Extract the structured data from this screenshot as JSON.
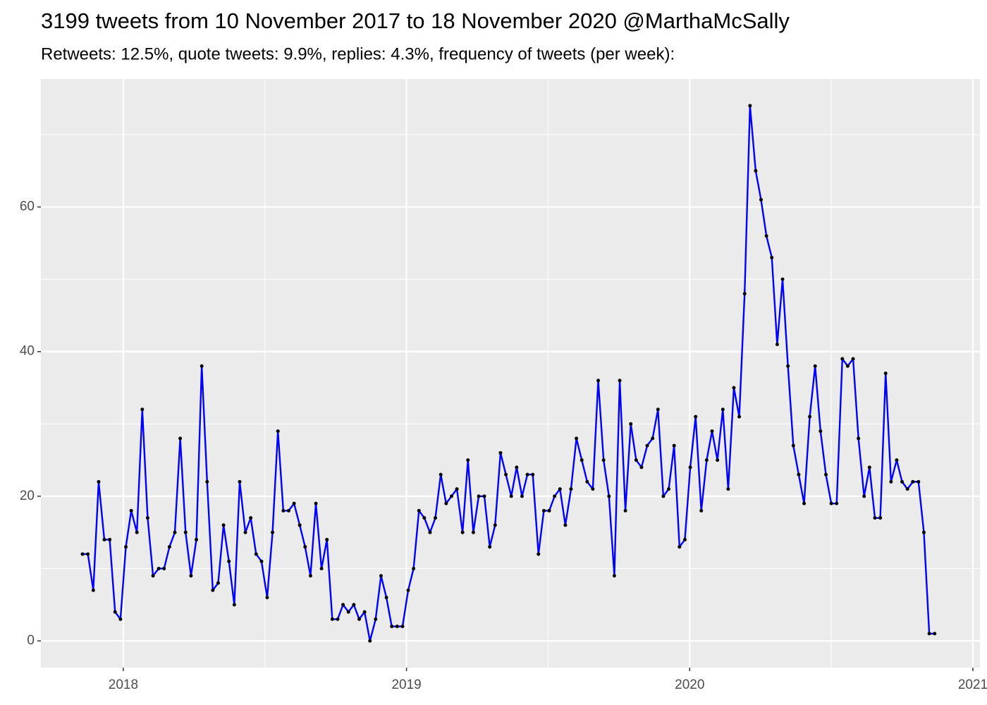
{
  "chart_data": {
    "type": "line",
    "title": "3199 tweets from 10 November 2017 to 18 November 2020 @MarthaMcSally",
    "subtitle": "Retweets: 12.5%, quote tweets: 9.9%, replies: 4.3%, frequency of tweets (per week):",
    "x": [
      2017.856,
      2017.875,
      2017.894,
      2017.913,
      2017.933,
      2017.952,
      2017.971,
      2017.99,
      2018.009,
      2018.028,
      2018.048,
      2018.067,
      2018.086,
      2018.105,
      2018.125,
      2018.144,
      2018.163,
      2018.182,
      2018.201,
      2018.22,
      2018.239,
      2018.258,
      2018.277,
      2018.296,
      2018.316,
      2018.335,
      2018.354,
      2018.373,
      2018.392,
      2018.411,
      2018.431,
      2018.45,
      2018.469,
      2018.488,
      2018.508,
      2018.527,
      2018.546,
      2018.565,
      2018.584,
      2018.603,
      2018.623,
      2018.642,
      2018.661,
      2018.68,
      2018.7,
      2018.719,
      2018.738,
      2018.757,
      2018.776,
      2018.795,
      2018.814,
      2018.833,
      2018.852,
      2018.871,
      2018.891,
      2018.91,
      2018.929,
      2018.948,
      2018.967,
      2018.986,
      2019.006,
      2019.025,
      2019.044,
      2019.063,
      2019.083,
      2019.102,
      2019.121,
      2019.14,
      2019.159,
      2019.178,
      2019.198,
      2019.217,
      2019.236,
      2019.255,
      2019.275,
      2019.294,
      2019.313,
      2019.332,
      2019.351,
      2019.37,
      2019.389,
      2019.408,
      2019.427,
      2019.446,
      2019.466,
      2019.485,
      2019.504,
      2019.523,
      2019.542,
      2019.561,
      2019.581,
      2019.6,
      2019.619,
      2019.638,
      2019.658,
      2019.677,
      2019.696,
      2019.715,
      2019.734,
      2019.753,
      2019.773,
      2019.792,
      2019.811,
      2019.83,
      2019.85,
      2019.869,
      2019.888,
      2019.907,
      2019.926,
      2019.945,
      2019.964,
      2019.983,
      2020.002,
      2020.021,
      2020.041,
      2020.06,
      2020.079,
      2020.098,
      2020.117,
      2020.136,
      2020.156,
      2020.175,
      2020.194,
      2020.213,
      2020.233,
      2020.252,
      2020.271,
      2020.29,
      2020.309,
      2020.328,
      2020.347,
      2020.366,
      2020.385,
      2020.404,
      2020.424,
      2020.443,
      2020.462,
      2020.481,
      2020.5,
      2020.519,
      2020.539,
      2020.558,
      2020.577,
      2020.596,
      2020.616,
      2020.635,
      2020.654,
      2020.673,
      2020.692,
      2020.711,
      2020.731,
      2020.75,
      2020.769,
      2020.788,
      2020.808,
      2020.827,
      2020.846,
      2020.865
    ],
    "values": [
      12,
      12,
      7,
      22,
      14,
      14,
      4,
      3,
      13,
      18,
      15,
      32,
      17,
      9,
      10,
      10,
      13,
      15,
      28,
      15,
      9,
      14,
      38,
      22,
      7,
      8,
      16,
      11,
      5,
      22,
      15,
      17,
      12,
      11,
      6,
      15,
      29,
      18,
      18,
      19,
      16,
      13,
      9,
      19,
      10,
      14,
      3,
      3,
      5,
      4,
      5,
      3,
      4,
      0,
      3,
      9,
      6,
      2,
      2,
      2,
      7,
      10,
      18,
      17,
      15,
      17,
      23,
      19,
      20,
      21,
      15,
      25,
      15,
      20,
      20,
      13,
      16,
      26,
      23,
      20,
      24,
      20,
      23,
      23,
      12,
      18,
      18,
      20,
      21,
      16,
      21,
      28,
      25,
      22,
      21,
      36,
      25,
      20,
      9,
      36,
      18,
      30,
      25,
      24,
      27,
      28,
      32,
      20,
      21,
      27,
      13,
      14,
      24,
      31,
      18,
      25,
      29,
      25,
      32,
      21,
      35,
      31,
      48,
      74,
      65,
      61,
      56,
      53,
      41,
      50,
      38,
      27,
      23,
      19,
      31,
      38,
      29,
      23,
      19,
      19,
      39,
      38,
      39,
      28,
      20,
      24,
      17,
      17,
      37,
      22,
      25,
      22,
      21,
      22,
      22,
      15,
      1,
      1
    ],
    "line_color": "#0000ff",
    "point_color": "#000000",
    "xlim": [
      2017.709,
      2021.025
    ],
    "ylim": [
      -3.7,
      77.7
    ],
    "xticks": [
      2018,
      2019,
      2020,
      2021
    ],
    "yticks": [
      0,
      20,
      40,
      60
    ],
    "grid": true
  }
}
